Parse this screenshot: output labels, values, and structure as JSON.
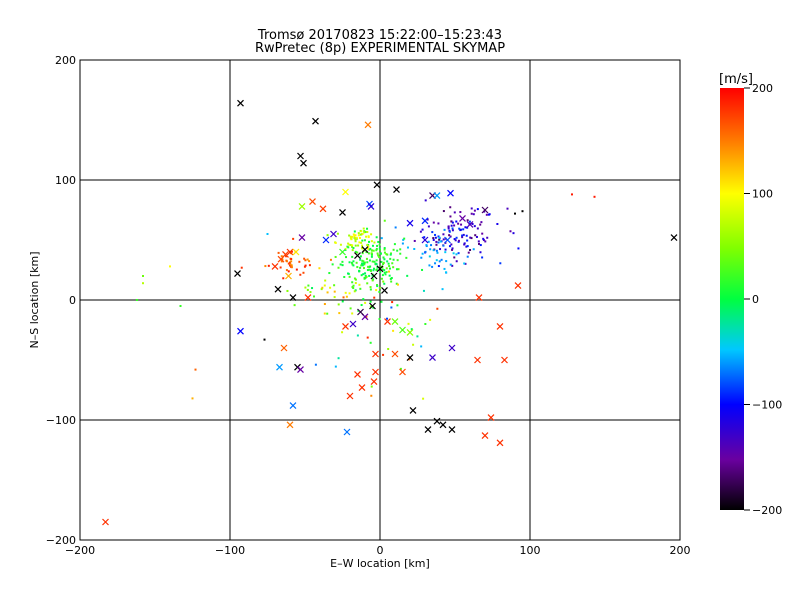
{
  "chart_data": {
    "type": "scatter",
    "title": "Tromsø 20170823 15:22:00–15:23:43",
    "subtitle": "RwPretec (8p) EXPERIMENTAL SKYMAP",
    "xlabel": "E–W location [km]",
    "ylabel": "N–S location [km]",
    "xlim": [
      -200,
      200
    ],
    "ylim": [
      -200,
      200
    ],
    "x_ticks": [
      "−200",
      "−100",
      "0",
      "100",
      "200"
    ],
    "y_ticks": [
      "−200",
      "−100",
      "0",
      "100",
      "200"
    ],
    "grid": true,
    "colorbar": {
      "label": "[m/s]",
      "range": [
        -200,
        200
      ],
      "ticks": [
        "200",
        "100",
        "0",
        "−100",
        "−200"
      ],
      "colormap": "rainbow (black-purple-blue-cyan-green-yellow-orange-red)"
    },
    "markers": [
      {
        "x": -93,
        "y": 164,
        "v": -200
      },
      {
        "x": -43,
        "y": 149,
        "v": -200
      },
      {
        "x": -53,
        "y": 120,
        "v": -200
      },
      {
        "x": -51,
        "y": 114,
        "v": -200
      },
      {
        "x": -8,
        "y": 146,
        "v": 150
      },
      {
        "x": -2,
        "y": 96,
        "v": -200
      },
      {
        "x": 11,
        "y": 92,
        "v": -200
      },
      {
        "x": 35,
        "y": 87,
        "v": -170
      },
      {
        "x": 38,
        "y": 87,
        "v": -60
      },
      {
        "x": 47,
        "y": 89,
        "v": -100
      },
      {
        "x": -45,
        "y": 82,
        "v": 170
      },
      {
        "x": -52,
        "y": 78,
        "v": 60
      },
      {
        "x": -38,
        "y": 76,
        "v": 175
      },
      {
        "x": -25,
        "y": 73,
        "v": -200
      },
      {
        "x": -23,
        "y": 90,
        "v": 100
      },
      {
        "x": -7,
        "y": 80,
        "v": -80
      },
      {
        "x": -6,
        "y": 78,
        "v": -120
      },
      {
        "x": 30,
        "y": 66,
        "v": -90
      },
      {
        "x": 20,
        "y": 64,
        "v": -110
      },
      {
        "x": 55,
        "y": 68,
        "v": -150
      },
      {
        "x": 60,
        "y": 63,
        "v": -140
      },
      {
        "x": 70,
        "y": 75,
        "v": -170
      },
      {
        "x": 45,
        "y": 50,
        "v": -80
      },
      {
        "x": 30,
        "y": 50,
        "v": -120
      },
      {
        "x": -52,
        "y": 52,
        "v": -150
      },
      {
        "x": -36,
        "y": 50,
        "v": -90
      },
      {
        "x": -31,
        "y": 55,
        "v": -130
      },
      {
        "x": -60,
        "y": 40,
        "v": 180
      },
      {
        "x": -63,
        "y": 38,
        "v": 175
      },
      {
        "x": -66,
        "y": 34,
        "v": 170
      },
      {
        "x": -56,
        "y": 40,
        "v": 110
      },
      {
        "x": -95,
        "y": 22,
        "v": -200
      },
      {
        "x": -70,
        "y": 28,
        "v": 180
      },
      {
        "x": -68,
        "y": 9,
        "v": -200
      },
      {
        "x": -58,
        "y": 2,
        "v": -200
      },
      {
        "x": -61,
        "y": 20,
        "v": 130
      },
      {
        "x": -48,
        "y": 2,
        "v": 180
      },
      {
        "x": -15,
        "y": 37,
        "v": -200
      },
      {
        "x": -10,
        "y": 42,
        "v": -200
      },
      {
        "x": -25,
        "y": 40,
        "v": 20
      },
      {
        "x": 0,
        "y": 26,
        "v": -200
      },
      {
        "x": -4,
        "y": 20,
        "v": -200
      },
      {
        "x": 3,
        "y": 8,
        "v": -200
      },
      {
        "x": -93,
        "y": -26,
        "v": -100
      },
      {
        "x": -64,
        "y": -40,
        "v": 160
      },
      {
        "x": -67,
        "y": -56,
        "v": -60
      },
      {
        "x": -55,
        "y": -56,
        "v": -200
      },
      {
        "x": -53,
        "y": -58,
        "v": -150
      },
      {
        "x": -58,
        "y": -88,
        "v": -70
      },
      {
        "x": -60,
        "y": -104,
        "v": 150
      },
      {
        "x": -22,
        "y": -110,
        "v": -70
      },
      {
        "x": -23,
        "y": -22,
        "v": 180
      },
      {
        "x": -18,
        "y": -20,
        "v": -130
      },
      {
        "x": -10,
        "y": -14,
        "v": -150
      },
      {
        "x": -13,
        "y": -10,
        "v": -180
      },
      {
        "x": -5,
        "y": -5,
        "v": -200
      },
      {
        "x": 5,
        "y": -18,
        "v": 180
      },
      {
        "x": 10,
        "y": -18,
        "v": 40
      },
      {
        "x": 15,
        "y": -25,
        "v": 30
      },
      {
        "x": 20,
        "y": -27,
        "v": 50
      },
      {
        "x": 10,
        "y": -45,
        "v": 170
      },
      {
        "x": 20,
        "y": -48,
        "v": -200
      },
      {
        "x": 15,
        "y": -60,
        "v": 170
      },
      {
        "x": -3,
        "y": -45,
        "v": 180
      },
      {
        "x": -15,
        "y": -62,
        "v": 180
      },
      {
        "x": -12,
        "y": -73,
        "v": 180
      },
      {
        "x": -4,
        "y": -68,
        "v": 180
      },
      {
        "x": -20,
        "y": -80,
        "v": 180
      },
      {
        "x": -3,
        "y": -60,
        "v": 180
      },
      {
        "x": 35,
        "y": -48,
        "v": -130
      },
      {
        "x": 48,
        "y": -40,
        "v": -130
      },
      {
        "x": 65,
        "y": -50,
        "v": 180
      },
      {
        "x": 83,
        "y": -50,
        "v": 180
      },
      {
        "x": 92,
        "y": 12,
        "v": 180
      },
      {
        "x": 66,
        "y": 2,
        "v": 180
      },
      {
        "x": 80,
        "y": -22,
        "v": 180
      },
      {
        "x": 22,
        "y": -92,
        "v": -200
      },
      {
        "x": 32,
        "y": -108,
        "v": -200
      },
      {
        "x": 38,
        "y": -101,
        "v": -200
      },
      {
        "x": 42,
        "y": -104,
        "v": -200
      },
      {
        "x": 48,
        "y": -108,
        "v": -200
      },
      {
        "x": 74,
        "y": -98,
        "v": 180
      },
      {
        "x": 70,
        "y": -113,
        "v": 180
      },
      {
        "x": 80,
        "y": -119,
        "v": 180
      },
      {
        "x": 196,
        "y": 52,
        "v": -200
      },
      {
        "x": -183,
        "y": -185,
        "v": 180
      }
    ],
    "clusters": [
      {
        "cx": 52,
        "cy": 55,
        "sx": 14,
        "sy": 11,
        "n": 120,
        "v": [
          -170,
          -80
        ]
      },
      {
        "cx": 36,
        "cy": 40,
        "sx": 10,
        "sy": 10,
        "n": 40,
        "v": [
          -70,
          -40
        ]
      },
      {
        "cx": -8,
        "cy": 30,
        "sx": 11,
        "sy": 13,
        "n": 190,
        "v": [
          -10,
          40
        ]
      },
      {
        "cx": -15,
        "cy": 50,
        "sx": 7,
        "sy": 4,
        "n": 50,
        "v": [
          50,
          110
        ]
      },
      {
        "cx": -60,
        "cy": 32,
        "sx": 8,
        "sy": 6,
        "n": 40,
        "v": [
          140,
          190
        ]
      },
      {
        "cx": -40,
        "cy": 10,
        "sx": 18,
        "sy": 12,
        "n": 30,
        "v": [
          20,
          150
        ]
      },
      {
        "cx": 0,
        "cy": -30,
        "sx": 25,
        "sy": 25,
        "n": 40,
        "v": [
          -100,
          190
        ]
      }
    ],
    "dots": [
      {
        "x": -162,
        "y": 0,
        "v": 20
      },
      {
        "x": -158,
        "y": 20,
        "v": 40
      },
      {
        "x": -158,
        "y": 14,
        "v": 70
      },
      {
        "x": -140,
        "y": 28,
        "v": 100
      },
      {
        "x": -133,
        "y": -5,
        "v": 20
      },
      {
        "x": -123,
        "y": -58,
        "v": 160
      },
      {
        "x": -125,
        "y": -82,
        "v": 130
      },
      {
        "x": 128,
        "y": 88,
        "v": 190
      },
      {
        "x": 143,
        "y": 86,
        "v": 190
      },
      {
        "x": 95,
        "y": 74,
        "v": -200
      },
      {
        "x": 90,
        "y": 72,
        "v": -200
      },
      {
        "x": -75,
        "y": 55,
        "v": -50
      },
      {
        "x": -77,
        "y": -33,
        "v": -200
      }
    ]
  }
}
